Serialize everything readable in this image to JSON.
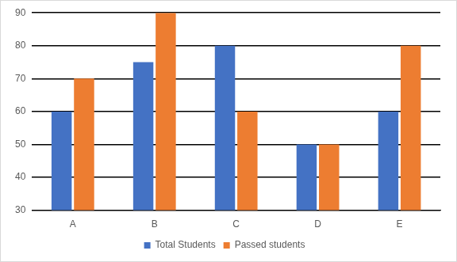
{
  "chart_data": {
    "type": "bar",
    "categories": [
      "A",
      "B",
      "C",
      "D",
      "E"
    ],
    "series": [
      {
        "name": "Total Students",
        "color": "#4472c4",
        "values": [
          60,
          75,
          80,
          50,
          60
        ]
      },
      {
        "name": "Passed students",
        "color": "#ed7d31",
        "values": [
          70,
          90,
          60,
          50,
          80
        ]
      }
    ],
    "ylim": [
      30,
      90
    ],
    "yticks": [
      30,
      40,
      50,
      60,
      70,
      80,
      90
    ],
    "grid": true,
    "legend": "bottom"
  }
}
